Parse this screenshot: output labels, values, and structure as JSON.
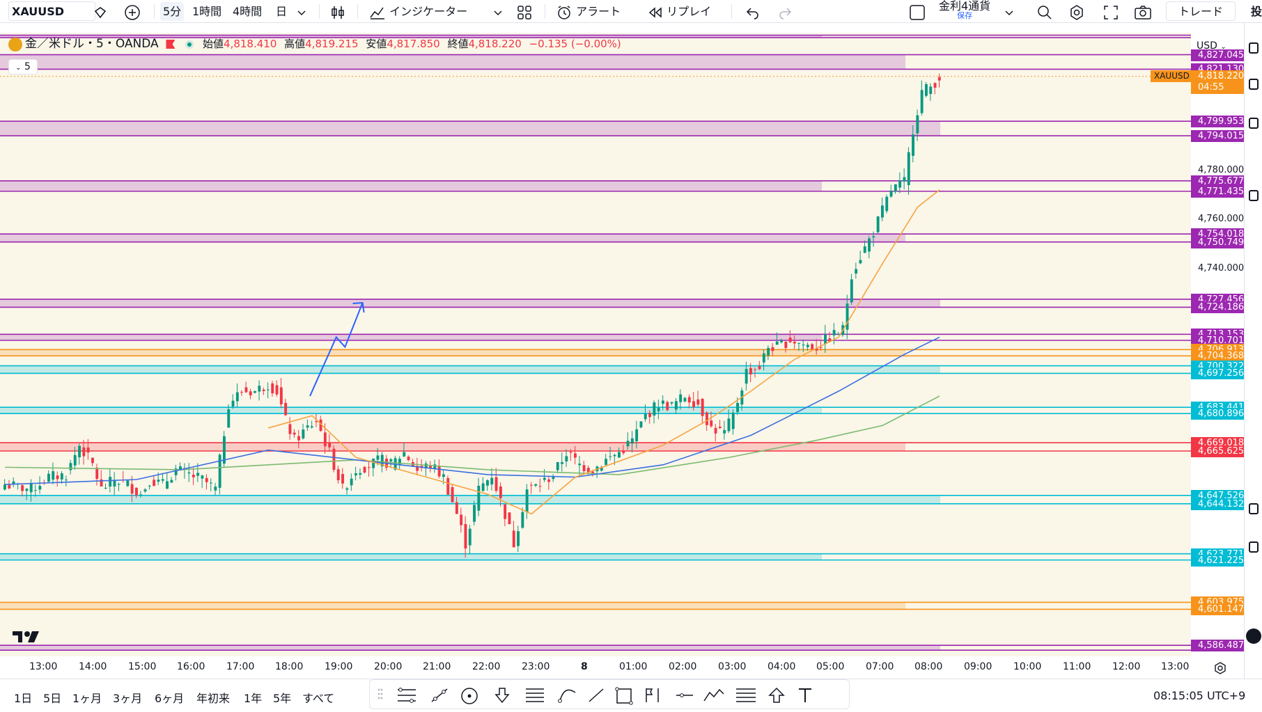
{
  "toolbar": {
    "symbol": "XAUUSD",
    "intervals": [
      "5分",
      "1時間",
      "4時間",
      "日"
    ],
    "selected_interval": "5分",
    "indicators_label": "インジケーター",
    "alert_label": "アラート",
    "replay_label": "リプレイ",
    "layout_name": "金利4通貨",
    "layout_status": "保存",
    "trade_label": "トレード",
    "right_edge_label": "投"
  },
  "legend": {
    "title": "金／米ドル・5・OANDA",
    "open_label": "始値",
    "open": "4,818.410",
    "high_label": "高値",
    "high": "4,819.215",
    "low_label": "安値",
    "low": "4,817.850",
    "close_label": "終値",
    "close": "4,818.220",
    "change": "−0.135 (−0.00%)",
    "interval_toggle": "5"
  },
  "currency": "USD",
  "current_price": {
    "symbol": "XAUUSD",
    "price": "4,818.220",
    "countdown": "04:55"
  },
  "price_levels": [
    {
      "label": "4,827.045",
      "color": "#9c27b0"
    },
    {
      "label": "4,821.130",
      "color": "#9c27b0"
    },
    {
      "label": "4,799.953",
      "color": "#9c27b0"
    },
    {
      "label": "4,794.015",
      "color": "#9c27b0"
    },
    {
      "label": "4,775.677",
      "color": "#9c27b0"
    },
    {
      "label": "4,771.435",
      "color": "#9c27b0"
    },
    {
      "label": "4,754.018",
      "color": "#9c27b0"
    },
    {
      "label": "4,750.749",
      "color": "#9c27b0"
    },
    {
      "label": "4,727.456",
      "color": "#9c27b0"
    },
    {
      "label": "4,724.186",
      "color": "#9c27b0"
    },
    {
      "label": "4,713.153",
      "color": "#9c27b0"
    },
    {
      "label": "4,710.701",
      "color": "#9c27b0"
    },
    {
      "label": "4,706.913",
      "color": "#f7931a"
    },
    {
      "label": "4,704.368",
      "color": "#f7931a"
    },
    {
      "label": "4,700.322",
      "color": "#00bcd4"
    },
    {
      "label": "4,697.256",
      "color": "#00bcd4"
    },
    {
      "label": "4,683.441",
      "color": "#00bcd4"
    },
    {
      "label": "4,680.896",
      "color": "#00bcd4"
    },
    {
      "label": "4,669.018",
      "color": "#f23645"
    },
    {
      "label": "4,665.625",
      "color": "#f23645"
    },
    {
      "label": "4,647.526",
      "color": "#00bcd4"
    },
    {
      "label": "4,644.132",
      "color": "#00bcd4"
    },
    {
      "label": "4,623.771",
      "color": "#00bcd4"
    },
    {
      "label": "4,621.225",
      "color": "#00bcd4"
    },
    {
      "label": "4,603.975",
      "color": "#f7931a"
    },
    {
      "label": "4,601.147",
      "color": "#f7931a"
    },
    {
      "label": "4,586.487",
      "color": "#9c27b0"
    }
  ],
  "price_ticks": [
    "4,780.000",
    "4,760.000",
    "4,740.000"
  ],
  "time_ticks": [
    "13:00",
    "14:00",
    "15:00",
    "16:00",
    "17:00",
    "18:00",
    "19:00",
    "20:00",
    "21:00",
    "22:00",
    "23:00",
    "8",
    "01:00",
    "02:00",
    "03:00",
    "04:00",
    "05:00",
    "07:00",
    "08:00",
    "09:00",
    "10:00",
    "11:00",
    "12:00",
    "13:00"
  ],
  "ranges": [
    "1日",
    "5日",
    "1ヶ月",
    "3ヶ月",
    "6ヶ月",
    "年初来",
    "1年",
    "5年",
    "すべて"
  ],
  "clock": "08:15:05 UTC+9",
  "chart_data": {
    "type": "candlestick",
    "symbol": "XAUUSD",
    "interval": "5",
    "x_start": "12:00",
    "y_range": [
      4582,
      4836
    ],
    "close_path": [
      [
        0,
        4652
      ],
      [
        6,
        4650
      ],
      [
        10,
        4655
      ],
      [
        14,
        4656
      ],
      [
        17,
        4668
      ],
      [
        20,
        4660
      ],
      [
        22,
        4650
      ],
      [
        25,
        4654
      ],
      [
        28,
        4652
      ],
      [
        31,
        4648
      ],
      [
        33,
        4654
      ],
      [
        36,
        4652
      ],
      [
        39,
        4658
      ],
      [
        42,
        4656
      ],
      [
        45,
        4654
      ],
      [
        48,
        4650
      ],
      [
        51,
        4685
      ],
      [
        54,
        4690
      ],
      [
        57,
        4690
      ],
      [
        60,
        4693
      ],
      [
        62,
        4690
      ],
      [
        64,
        4678
      ],
      [
        66,
        4670
      ],
      [
        69,
        4675
      ],
      [
        71,
        4678
      ],
      [
        74,
        4665
      ],
      [
        77,
        4650
      ],
      [
        80,
        4658
      ],
      [
        83,
        4660
      ],
      [
        86,
        4662
      ],
      [
        88,
        4660
      ],
      [
        91,
        4665
      ],
      [
        94,
        4658
      ],
      [
        97,
        4660
      ],
      [
        100,
        4655
      ],
      [
        103,
        4640
      ],
      [
        105,
        4628
      ],
      [
        108,
        4650
      ],
      [
        111,
        4656
      ],
      [
        114,
        4640
      ],
      [
        116,
        4628
      ],
      [
        119,
        4650
      ],
      [
        122,
        4652
      ],
      [
        125,
        4656
      ],
      [
        128,
        4665
      ],
      [
        131,
        4660
      ],
      [
        134,
        4658
      ],
      [
        137,
        4662
      ],
      [
        140,
        4665
      ],
      [
        143,
        4670
      ],
      [
        146,
        4680
      ],
      [
        149,
        4685
      ],
      [
        152,
        4684
      ],
      [
        155,
        4688
      ],
      [
        158,
        4685
      ],
      [
        161,
        4675
      ],
      [
        164,
        4673
      ],
      [
        166,
        4680
      ],
      [
        169,
        4698
      ],
      [
        172,
        4700
      ],
      [
        174,
        4708
      ],
      [
        176,
        4708
      ],
      [
        179,
        4711
      ],
      [
        182,
        4709
      ],
      [
        185,
        4708
      ],
      [
        188,
        4712
      ],
      [
        191,
        4715
      ],
      [
        193,
        4738
      ],
      [
        195,
        4745
      ],
      [
        198,
        4755
      ],
      [
        202,
        4772
      ],
      [
        205,
        4775
      ],
      [
        207,
        4797
      ],
      [
        209,
        4812
      ],
      [
        211,
        4814
      ],
      [
        213,
        4818
      ]
    ],
    "ema_fast_path": [
      [
        60,
        4675
      ],
      [
        70,
        4680
      ],
      [
        80,
        4663
      ],
      [
        90,
        4658
      ],
      [
        110,
        4648
      ],
      [
        120,
        4640
      ],
      [
        130,
        4655
      ],
      [
        150,
        4668
      ],
      [
        160,
        4678
      ],
      [
        170,
        4690
      ],
      [
        180,
        4703
      ],
      [
        190,
        4712
      ],
      [
        200,
        4742
      ],
      [
        208,
        4765
      ],
      [
        213,
        4772
      ]
    ],
    "ema_mid_path": [
      [
        0,
        4652
      ],
      [
        30,
        4654
      ],
      [
        60,
        4666
      ],
      [
        80,
        4662
      ],
      [
        110,
        4656
      ],
      [
        130,
        4655
      ],
      [
        150,
        4660
      ],
      [
        170,
        4672
      ],
      [
        190,
        4690
      ],
      [
        205,
        4705
      ],
      [
        213,
        4712
      ]
    ],
    "sma_slow_path": [
      [
        0,
        4659
      ],
      [
        40,
        4658
      ],
      [
        80,
        4662
      ],
      [
        110,
        4658
      ],
      [
        140,
        4656
      ],
      [
        165,
        4663
      ],
      [
        185,
        4670
      ],
      [
        200,
        4676
      ],
      [
        213,
        4688
      ]
    ],
    "zones": [
      {
        "top": 4827.045,
        "bottom": 4821.13,
        "color": "#9c27b0"
      },
      {
        "top": 4799.953,
        "bottom": 4794.015,
        "color": "#9c27b0"
      },
      {
        "top": 4775.677,
        "bottom": 4771.435,
        "color": "#9c27b0"
      },
      {
        "top": 4754.018,
        "bottom": 4750.749,
        "color": "#9c27b0"
      },
      {
        "top": 4727.456,
        "bottom": 4724.186,
        "color": "#9c27b0"
      },
      {
        "top": 4713.153,
        "bottom": 4710.701,
        "color": "#9c27b0"
      },
      {
        "top": 4706.913,
        "bottom": 4704.368,
        "color": "#f7931a"
      },
      {
        "top": 4700.322,
        "bottom": 4697.256,
        "color": "#00bcd4"
      },
      {
        "top": 4683.441,
        "bottom": 4680.896,
        "color": "#00bcd4"
      },
      {
        "top": 4669.018,
        "bottom": 4665.625,
        "color": "#f23645"
      },
      {
        "top": 4647.526,
        "bottom": 4644.132,
        "color": "#00bcd4"
      },
      {
        "top": 4623.771,
        "bottom": 4621.225,
        "color": "#00bcd4"
      },
      {
        "top": 4603.975,
        "bottom": 4601.147,
        "color": "#f7931a"
      },
      {
        "top": 4586.487,
        "bottom": 4584.5,
        "color": "#9c27b0"
      },
      {
        "top": 4835.0,
        "bottom": 4834.0,
        "color": "#9c27b0"
      }
    ],
    "annotation_arrow": {
      "from": [
        70,
        4688
      ],
      "via": [
        [
          76,
          4712
        ],
        [
          78,
          4708
        ]
      ],
      "to": [
        82,
        4726
      ],
      "color": "#2962ff"
    },
    "colors": {
      "up": "#089981",
      "down": "#f23645",
      "ema_fast": "#f7a440",
      "ema_mid": "#3b6fe0",
      "sma_slow": "#7cba6f"
    }
  }
}
